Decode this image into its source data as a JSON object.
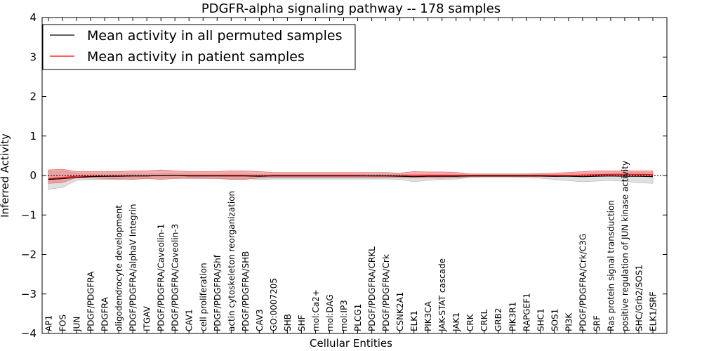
{
  "chart_data": {
    "type": "line",
    "title": "PDGFR-alpha signaling pathway -- 178 samples",
    "xlabel": "Cellular Entities",
    "ylabel": "Inferred Activity",
    "ylim": [
      -4,
      4
    ],
    "yticks": [
      -4,
      -3,
      -2,
      -1,
      0,
      1,
      2,
      3,
      4
    ],
    "legend_position": "top-left",
    "categories": [
      "AP1",
      "FOS",
      "JUN",
      "PDGF/PDGFRA",
      "PDGFRA",
      "oligodendrocyte development",
      "PDGF/PDGFRA/alphaV Integrin",
      "ITGAV",
      "PDGF/PDGFRA/Caveolin-1",
      "PDGF/PDGFRA/Caveolin-3",
      "CAV1",
      "cell proliferation",
      "PDGF/PDGFRA/Shf",
      "actin cytoskeleton reorganization",
      "PDGF/PDGFRA/SHB",
      "CAV3",
      "GO:0007205",
      "SHB",
      "SHF",
      "mol:Ca2+",
      "mol:DAG",
      "mol:IP3",
      "PLCG1",
      "PDGF/PDGFRA/CRKL",
      "PDGF/PDGFRA/Crk",
      "CSNK2A1",
      "ELK1",
      "PIK3CA",
      "JAK-STAT cascade",
      "JAK1",
      "CRK",
      "CRKL",
      "GRB2",
      "PIK3R1",
      "RAPGEF1",
      "SHC1",
      "SOS1",
      "PI3K",
      "PDGF/PDGFRA/Crk/C3G",
      "SRF",
      "Ras protein signal transduction",
      "positive regulation of JUN kinase activity",
      "SHC/Grb2/SOS1",
      "ELK1/SRF"
    ],
    "series": [
      {
        "name": "Mean activity in all permuted samples",
        "color": "#000000",
        "band_color": "#cccccc",
        "values": [
          -0.1,
          -0.08,
          -0.05,
          -0.03,
          -0.02,
          -0.02,
          -0.01,
          -0.01,
          0,
          0,
          -0.01,
          -0.01,
          -0.01,
          -0.01,
          -0.01,
          -0.02,
          -0.01,
          -0.01,
          -0.01,
          -0.01,
          -0.01,
          -0.01,
          -0.01,
          -0.01,
          -0.01,
          -0.02,
          -0.03,
          -0.02,
          -0.02,
          -0.02,
          -0.01,
          -0.01,
          -0.01,
          -0.01,
          -0.01,
          -0.01,
          -0.02,
          -0.02,
          -0.03,
          -0.02,
          -0.01,
          -0.02,
          -0.02,
          -0.03
        ],
        "lower": [
          -0.35,
          -0.3,
          -0.12,
          -0.1,
          -0.1,
          -0.1,
          -0.08,
          -0.07,
          -0.07,
          -0.06,
          -0.08,
          -0.08,
          -0.08,
          -0.08,
          -0.08,
          -0.1,
          -0.09,
          -0.09,
          -0.09,
          -0.09,
          -0.09,
          -0.09,
          -0.09,
          -0.09,
          -0.09,
          -0.1,
          -0.16,
          -0.12,
          -0.1,
          -0.09,
          -0.05,
          -0.04,
          -0.04,
          -0.04,
          -0.05,
          -0.07,
          -0.1,
          -0.13,
          -0.16,
          -0.14,
          -0.12,
          -0.15,
          -0.18,
          -0.2
        ],
        "upper": [
          0.1,
          0.12,
          0.05,
          0.04,
          0.04,
          0.04,
          0.04,
          0.04,
          0.05,
          0.05,
          0.04,
          0.04,
          0.04,
          0.04,
          0.04,
          0.03,
          0.03,
          0.03,
          0.03,
          0.03,
          0.03,
          0.03,
          0.03,
          0.03,
          0.03,
          0.03,
          0.03,
          0.03,
          0.03,
          0.03,
          0.02,
          0.02,
          0.02,
          0.02,
          0.03,
          0.03,
          0.03,
          0.04,
          0.05,
          0.06,
          0.06,
          0.07,
          0.08,
          0.08
        ]
      },
      {
        "name": "Mean activity in patient samples",
        "color": "#ff0000",
        "band_color": "#f08080",
        "values": [
          -0.08,
          -0.05,
          -0.02,
          -0.02,
          -0.02,
          -0.01,
          -0.01,
          -0.01,
          0,
          0,
          0,
          0,
          0,
          0,
          0,
          -0.01,
          0,
          0,
          0,
          0,
          0,
          0,
          0,
          -0.01,
          -0.01,
          -0.01,
          0,
          0,
          0,
          0,
          0,
          0,
          0,
          0,
          0,
          0,
          0,
          0,
          0.01,
          0.02,
          0.03,
          0.03,
          0.03,
          0.02
        ],
        "lower": [
          -0.2,
          -0.18,
          -0.05,
          -0.06,
          -0.08,
          -0.09,
          -0.1,
          -0.08,
          -0.1,
          -0.08,
          -0.07,
          -0.07,
          -0.08,
          -0.1,
          -0.1,
          -0.06,
          -0.05,
          -0.05,
          -0.05,
          -0.05,
          -0.05,
          -0.05,
          -0.05,
          -0.05,
          -0.05,
          -0.05,
          -0.06,
          -0.06,
          -0.06,
          -0.05,
          -0.03,
          -0.03,
          -0.03,
          -0.03,
          -0.03,
          -0.03,
          -0.03,
          -0.02,
          -0.02,
          -0.02,
          -0.02,
          -0.02,
          -0.02,
          -0.02
        ],
        "upper": [
          0.14,
          0.16,
          0.1,
          0.1,
          0.1,
          0.1,
          0.12,
          0.12,
          0.14,
          0.12,
          0.1,
          0.1,
          0.1,
          0.12,
          0.12,
          0.1,
          0.08,
          0.08,
          0.08,
          0.08,
          0.08,
          0.08,
          0.08,
          0.08,
          0.08,
          0.06,
          0.1,
          0.09,
          0.09,
          0.08,
          0.04,
          0.04,
          0.04,
          0.04,
          0.04,
          0.05,
          0.06,
          0.08,
          0.1,
          0.12,
          0.12,
          0.12,
          0.12,
          0.12
        ]
      }
    ],
    "reference_line": 0
  }
}
